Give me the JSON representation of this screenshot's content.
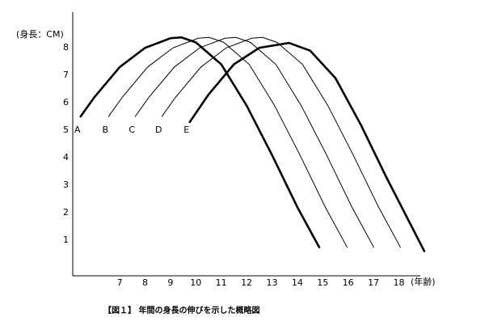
{
  "chart_data": {
    "type": "line",
    "y_label": "(身長：CM)",
    "x_label": "(年齢)",
    "caption": "【図１】 年間の身長の伸びを示した概略図",
    "xlim": [
      5.15,
      19.1
    ],
    "ylim": [
      -0.3,
      9.3
    ],
    "xticks": [
      7,
      8,
      9,
      10,
      11,
      12,
      13,
      14,
      15,
      16,
      17,
      18
    ],
    "yticks": [
      1,
      2,
      3,
      4,
      5,
      6,
      7,
      8
    ],
    "series": [
      {
        "name": "A",
        "color": "#000000",
        "width": 2.6,
        "x": [
          5.46,
          6,
          7,
          8,
          9,
          9.43,
          10,
          11,
          12,
          13,
          14,
          14.86
        ],
        "values": [
          5.5,
          6.2,
          7.3,
          8.0,
          8.35,
          8.38,
          8.2,
          7.4,
          5.9,
          4.1,
          2.2,
          0.74
        ]
      },
      {
        "name": "B",
        "color": "#000000",
        "width": 1,
        "x": [
          6.56,
          7.1,
          8.1,
          9.1,
          10.1,
          10.53,
          11.1,
          12.1,
          13.1,
          14.1,
          15.1,
          15.96
        ],
        "values": [
          5.5,
          6.2,
          7.3,
          8.0,
          8.35,
          8.38,
          8.2,
          7.4,
          5.9,
          4.1,
          2.2,
          0.74
        ]
      },
      {
        "name": "C",
        "color": "#000000",
        "width": 1,
        "x": [
          7.61,
          8.15,
          9.15,
          10.15,
          11.15,
          11.58,
          12.15,
          13.15,
          14.15,
          15.15,
          16.15,
          17.01
        ],
        "values": [
          5.5,
          6.2,
          7.3,
          8.0,
          8.35,
          8.38,
          8.2,
          7.4,
          5.9,
          4.1,
          2.2,
          0.74
        ]
      },
      {
        "name": "D",
        "color": "#000000",
        "width": 1,
        "x": [
          8.66,
          9.2,
          10.2,
          11.2,
          12.2,
          12.63,
          13.2,
          14.2,
          15.2,
          16.2,
          17.2,
          18.06
        ],
        "values": [
          5.5,
          6.2,
          7.3,
          8.0,
          8.35,
          8.38,
          8.2,
          7.4,
          5.9,
          4.1,
          2.2,
          0.74
        ]
      },
      {
        "name": "E",
        "color": "#000000",
        "width": 2.6,
        "x": [
          9.76,
          10.5,
          11.5,
          12.5,
          13.67,
          14.5,
          15.5,
          16.5,
          17.5,
          18.5,
          19.0
        ],
        "values": [
          5.3,
          6.3,
          7.4,
          8.0,
          8.18,
          7.9,
          6.9,
          5.2,
          3.3,
          1.5,
          0.6
        ]
      }
    ]
  }
}
